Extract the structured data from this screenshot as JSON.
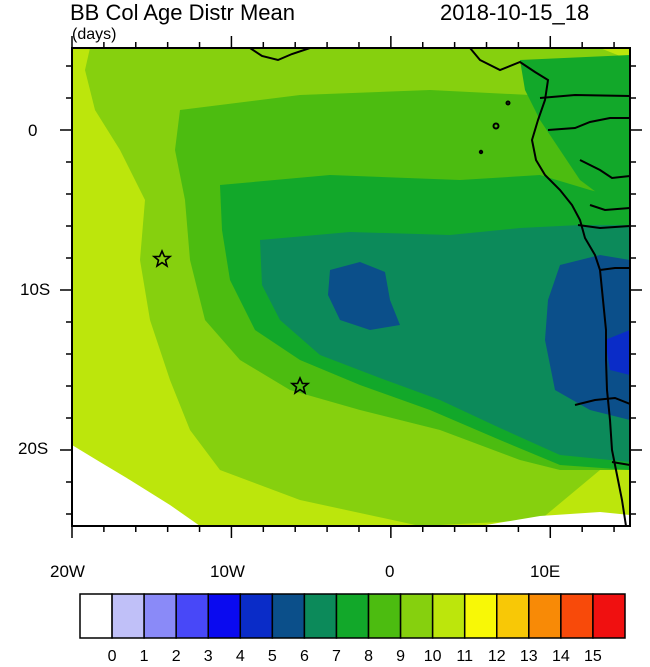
{
  "header": {
    "title": "BB Col Age Distr Mean",
    "units": "(days)",
    "timestamp": "2018-10-15_18"
  },
  "axes": {
    "x_ticks": [
      "20W",
      "10W",
      "0",
      "10E"
    ],
    "y_ticks": [
      "0",
      "10S",
      "20S"
    ]
  },
  "map": {
    "region": "Southeast Atlantic / Southwest Africa",
    "lon_range": [
      -20,
      15
    ],
    "lat_range": [
      -25,
      5
    ],
    "markers": [
      {
        "name": "star-marker-1",
        "lon": -14.3,
        "lat": -8.2
      },
      {
        "name": "star-marker-2",
        "lon": -5.8,
        "lat": -16.2
      }
    ]
  },
  "colorbar": {
    "labels": [
      "0",
      "1",
      "2",
      "3",
      "4",
      "5",
      "6",
      "7",
      "8",
      "9",
      "10",
      "11",
      "12",
      "13",
      "14",
      "15"
    ],
    "colors": [
      "#ffffff",
      "#c0c0f8",
      "#8a8af8",
      "#4848f8",
      "#0a0af0",
      "#0a2cc8",
      "#0b4f8a",
      "#0c8a5a",
      "#12a82a",
      "#4cbc10",
      "#86d00e",
      "#bce60c",
      "#f8f806",
      "#f8c806",
      "#f88a06",
      "#f84a0a",
      "#f01010"
    ]
  }
}
